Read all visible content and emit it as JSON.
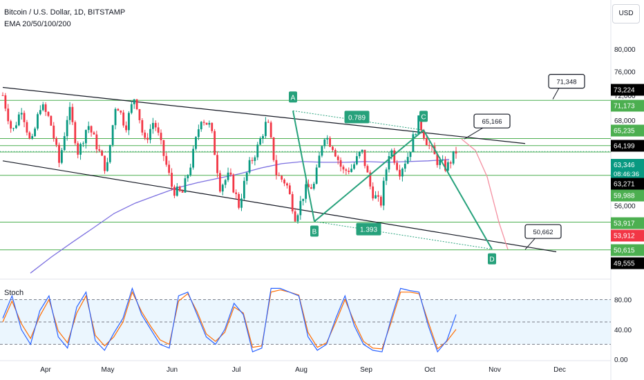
{
  "header": {
    "title": "Bitcoin / U.S. Dollar, 1D, BITSTAMP",
    "indicator": "EMA 20/50/100/200"
  },
  "currency_button": "USD",
  "stoch_label": "Stoch",
  "colors": {
    "up": "#089981",
    "down": "#f23645",
    "ema": "#7b6fe0",
    "pattern": "#26a17b",
    "level": "#4caf50",
    "projection": "#f48fa0",
    "stoch_k": "#2962ff",
    "stoch_d": "#ff6d00"
  },
  "chart_data": [
    {
      "type": "candlestick",
      "ylim": [
        47800,
        84000
      ],
      "y_scale": "log",
      "x_ticks": [
        "Apr",
        "May",
        "Jun",
        "Jul",
        "Aug",
        "Sep",
        "Oct",
        "Nov",
        "Dec"
      ],
      "y_ticks": [
        56000,
        60000,
        64000,
        68000,
        72000,
        76000,
        80000
      ],
      "y_tick_labels": [
        "56,000",
        "60,000",
        "64,000",
        "68,000",
        "72,000",
        "76,000",
        "80,000"
      ],
      "support_resistance_levels": [
        71173,
        65235,
        64199,
        63271,
        59988,
        53917,
        50615
      ],
      "price_badges": [
        {
          "label": "73,224",
          "value": 73224,
          "style": "dark"
        },
        {
          "label": "71,173",
          "value": 71173,
          "style": "green"
        },
        {
          "label": "65,235",
          "value": 65235,
          "style": "green"
        },
        {
          "label": "64,199",
          "value": 64199,
          "style": "dark"
        },
        {
          "label": "63,346",
          "sublabel": "08:46:36",
          "value": 63346,
          "style": "teal"
        },
        {
          "label": "63,271",
          "value": 63271,
          "style": "dark"
        },
        {
          "label": "59,988",
          "value": 59988,
          "style": "green"
        },
        {
          "label": "53,917",
          "value": 53917,
          "style": "green"
        },
        {
          "label": "53,912",
          "value": 53912,
          "style": "red"
        },
        {
          "label": "50,615",
          "value": 50615,
          "style": "green"
        },
        {
          "label": "49,555",
          "value": 49555,
          "style": "dark"
        }
      ],
      "callouts": [
        {
          "label": "71,348",
          "value": 71348
        },
        {
          "label": "65,166",
          "value": 65166
        },
        {
          "label": "50,662",
          "value": 50662
        }
      ],
      "harmonic_pattern": {
        "points": [
          {
            "label": "A",
            "value": 69500
          },
          {
            "label": "B",
            "value": 54000
          },
          {
            "label": "C",
            "value": 66500
          },
          {
            "label": "D",
            "value": 50700
          }
        ],
        "ratios": [
          "0.789",
          "1.393"
        ]
      },
      "channel": {
        "upper": [
          73300,
          64500
        ],
        "lower": [
          62000,
          50400
        ]
      },
      "ema_series": [
        48000,
        49800,
        51500,
        53200,
        55000,
        56300,
        57300,
        58300,
        59000,
        59600,
        60200,
        61000,
        61600,
        61900,
        61800,
        61800,
        61900,
        61800,
        61900,
        62000,
        62200
      ],
      "close_series": [
        72000,
        66000,
        70000,
        64000,
        70500,
        68000,
        61500,
        70000,
        63000,
        67500,
        64000,
        60500,
        71000,
        67000,
        72000,
        64500,
        68000,
        63000,
        58000,
        57500,
        62000,
        68500,
        67000,
        58500,
        60000,
        56000,
        61000,
        64000,
        68000,
        60000,
        59000,
        54500,
        58000,
        58700,
        66000,
        64000,
        60500,
        61000,
        63500,
        58000,
        56000,
        64000,
        60500,
        63000,
        68000,
        64500,
        62000,
        61000,
        63346
      ],
      "projection_series": [
        65166,
        63500,
        59800,
        53912,
        50662
      ]
    },
    {
      "type": "line",
      "name": "Stoch",
      "ylim": [
        0,
        100
      ],
      "y_ticks": [
        0,
        40,
        80
      ],
      "y_tick_labels": [
        "0.00",
        "40.00",
        "80.00"
      ],
      "band": [
        20,
        80
      ],
      "k_series": [
        55,
        85,
        40,
        20,
        65,
        85,
        30,
        15,
        70,
        90,
        25,
        12,
        35,
        55,
        95,
        60,
        40,
        20,
        15,
        85,
        90,
        60,
        30,
        20,
        40,
        75,
        60,
        10,
        15,
        95,
        95,
        90,
        85,
        30,
        12,
        20,
        55,
        85,
        45,
        20,
        12,
        10,
        55,
        95,
        92,
        90,
        45,
        10,
        25,
        60
      ],
      "d_series": [
        50,
        78,
        48,
        28,
        58,
        80,
        38,
        22,
        62,
        85,
        32,
        18,
        30,
        50,
        90,
        64,
        44,
        26,
        20,
        78,
        88,
        64,
        34,
        24,
        36,
        70,
        62,
        16,
        18,
        90,
        93,
        90,
        86,
        36,
        16,
        22,
        50,
        80,
        50,
        24,
        15,
        14,
        50,
        90,
        90,
        88,
        50,
        14,
        24,
        40
      ]
    }
  ]
}
